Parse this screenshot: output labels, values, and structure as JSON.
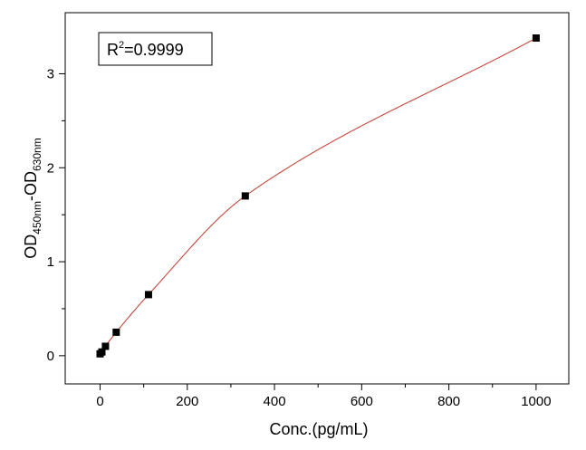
{
  "chart_data": {
    "type": "scatter",
    "xlabel": "Conc.(pg/mL)",
    "ylabel": {
      "main": "OD",
      "sub1": "450nm",
      "sep": "-OD",
      "sub2": "630nm"
    },
    "xlim": [
      -80,
      1075
    ],
    "ylim": [
      -0.3,
      3.65
    ],
    "x_ticks": [
      0,
      200,
      400,
      600,
      800,
      1000
    ],
    "y_ticks": [
      0,
      1,
      2,
      3
    ],
    "x_tick_labels": [
      "0",
      "200",
      "400",
      "600",
      "800",
      "1000"
    ],
    "y_tick_labels": [
      "0",
      "1",
      "2",
      "3"
    ],
    "grid": false,
    "annotation": {
      "prefix": "R",
      "sup": "2",
      "suffix": "=0.9999"
    },
    "series": [
      {
        "marker": "square",
        "color": "#000000",
        "points": [
          {
            "x": 0,
            "y": 0.02
          },
          {
            "x": 4.1,
            "y": 0.04
          },
          {
            "x": 12.3,
            "y": 0.1
          },
          {
            "x": 37,
            "y": 0.25
          },
          {
            "x": 111,
            "y": 0.65
          },
          {
            "x": 333,
            "y": 1.7
          },
          {
            "x": 1000,
            "y": 3.38
          }
        ]
      }
    ],
    "fit_curve": {
      "color": "#c0392b"
    }
  }
}
